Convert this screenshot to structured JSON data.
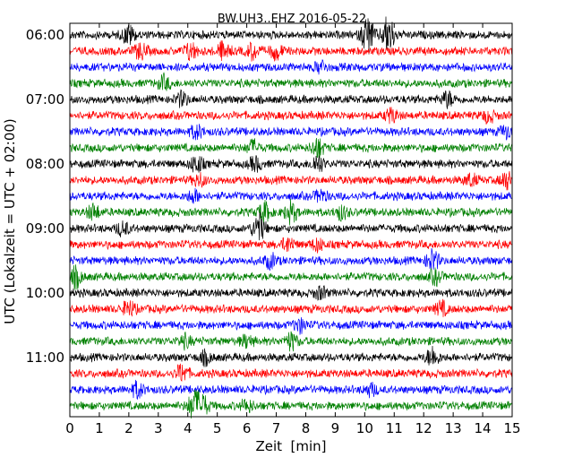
{
  "chart_data": {
    "type": "line",
    "title": "BW.UH3..EHZ 2016-05-22",
    "xlabel": "Zeit  [min]",
    "ylabel": "UTC (Lokalzeit = UTC + 02:00)",
    "xlim": [
      0,
      15
    ],
    "x_ticks": [
      "0",
      "1",
      "2",
      "3",
      "4",
      "5",
      "6",
      "7",
      "8",
      "9",
      "10",
      "11",
      "12",
      "13",
      "14",
      "15"
    ],
    "y_ticks": [
      {
        "label": "06:00",
        "row": 0
      },
      {
        "label": "07:00",
        "row": 4
      },
      {
        "label": "08:00",
        "row": 8
      },
      {
        "label": "09:00",
        "row": 12
      },
      {
        "label": "10:00",
        "row": 16
      },
      {
        "label": "11:00",
        "row": 20
      }
    ],
    "row_interval_minutes": 15,
    "start_time": "06:00",
    "color_cycle": [
      "#000000",
      "#ff0000",
      "#0000ff",
      "#008000"
    ],
    "series": [
      {
        "start": "06:00",
        "color": "#000000",
        "events": [
          {
            "minute": 2.0,
            "amp": 0.5
          },
          {
            "minute": 10.1,
            "amp": 1.0
          },
          {
            "minute": 10.8,
            "amp": 1.0
          }
        ]
      },
      {
        "start": "06:15",
        "color": "#ff0000",
        "events": [
          {
            "minute": 2.4,
            "amp": 0.4
          },
          {
            "minute": 4.1,
            "amp": 0.45
          },
          {
            "minute": 5.2,
            "amp": 0.45
          },
          {
            "minute": 6.2,
            "amp": 0.4
          },
          {
            "minute": 7.0,
            "amp": 0.4
          }
        ]
      },
      {
        "start": "06:30",
        "color": "#0000ff",
        "events": [
          {
            "minute": 8.5,
            "amp": 0.3
          }
        ]
      },
      {
        "start": "06:45",
        "color": "#008000",
        "events": [
          {
            "minute": 3.2,
            "amp": 0.35
          }
        ]
      },
      {
        "start": "07:00",
        "color": "#000000",
        "events": [
          {
            "minute": 3.8,
            "amp": 0.35
          },
          {
            "minute": 12.8,
            "amp": 0.4
          }
        ]
      },
      {
        "start": "07:15",
        "color": "#ff0000",
        "events": [
          {
            "minute": 10.9,
            "amp": 0.35
          },
          {
            "minute": 14.2,
            "amp": 0.3
          }
        ]
      },
      {
        "start": "07:30",
        "color": "#0000ff",
        "events": [
          {
            "minute": 4.3,
            "amp": 0.35
          },
          {
            "minute": 14.8,
            "amp": 0.3
          }
        ]
      },
      {
        "start": "07:45",
        "color": "#008000",
        "events": [
          {
            "minute": 6.2,
            "amp": 0.35
          },
          {
            "minute": 8.4,
            "amp": 0.5
          }
        ]
      },
      {
        "start": "08:00",
        "color": "#000000",
        "events": [
          {
            "minute": 4.3,
            "amp": 0.45
          },
          {
            "minute": 8.4,
            "amp": 0.45
          },
          {
            "minute": 6.3,
            "amp": 0.35
          }
        ]
      },
      {
        "start": "08:15",
        "color": "#ff0000",
        "events": [
          {
            "minute": 4.4,
            "amp": 0.3
          },
          {
            "minute": 13.6,
            "amp": 0.3
          },
          {
            "minute": 14.8,
            "amp": 0.45
          }
        ]
      },
      {
        "start": "08:30",
        "color": "#0000ff",
        "events": [
          {
            "minute": 4.2,
            "amp": 0.3
          },
          {
            "minute": 8.5,
            "amp": 0.3
          }
        ]
      },
      {
        "start": "08:45",
        "color": "#008000",
        "events": [
          {
            "minute": 0.8,
            "amp": 0.4
          },
          {
            "minute": 6.6,
            "amp": 0.5
          },
          {
            "minute": 7.5,
            "amp": 0.55
          },
          {
            "minute": 9.2,
            "amp": 0.35
          }
        ]
      },
      {
        "start": "09:00",
        "color": "#000000",
        "events": [
          {
            "minute": 1.8,
            "amp": 0.35
          },
          {
            "minute": 6.4,
            "amp": 0.75
          }
        ]
      },
      {
        "start": "09:15",
        "color": "#ff0000",
        "events": [
          {
            "minute": 7.4,
            "amp": 0.35
          },
          {
            "minute": 8.4,
            "amp": 0.3
          }
        ]
      },
      {
        "start": "09:30",
        "color": "#0000ff",
        "events": [
          {
            "minute": 6.8,
            "amp": 0.35
          },
          {
            "minute": 12.3,
            "amp": 0.55
          }
        ]
      },
      {
        "start": "09:45",
        "color": "#008000",
        "events": [
          {
            "minute": 0.2,
            "amp": 0.5
          },
          {
            "minute": 12.4,
            "amp": 0.35
          }
        ]
      },
      {
        "start": "10:00",
        "color": "#000000",
        "events": [
          {
            "minute": 8.5,
            "amp": 0.3
          }
        ]
      },
      {
        "start": "10:15",
        "color": "#ff0000",
        "events": [
          {
            "minute": 2.0,
            "amp": 0.4
          },
          {
            "minute": 12.6,
            "amp": 0.35
          }
        ]
      },
      {
        "start": "10:30",
        "color": "#0000ff",
        "events": [
          {
            "minute": 7.8,
            "amp": 0.35
          }
        ]
      },
      {
        "start": "10:45",
        "color": "#008000",
        "events": [
          {
            "minute": 3.9,
            "amp": 0.3
          },
          {
            "minute": 6.0,
            "amp": 0.3
          },
          {
            "minute": 7.5,
            "amp": 0.45
          }
        ]
      },
      {
        "start": "11:00",
        "color": "#000000",
        "events": [
          {
            "minute": 4.6,
            "amp": 0.3
          },
          {
            "minute": 12.3,
            "amp": 0.5
          }
        ]
      },
      {
        "start": "11:15",
        "color": "#ff0000",
        "events": [
          {
            "minute": 3.8,
            "amp": 0.45
          }
        ]
      },
      {
        "start": "11:30",
        "color": "#0000ff",
        "events": [
          {
            "minute": 2.3,
            "amp": 0.4
          },
          {
            "minute": 10.2,
            "amp": 0.3
          }
        ]
      },
      {
        "start": "11:45",
        "color": "#008000",
        "events": [
          {
            "minute": 4.2,
            "amp": 0.7
          },
          {
            "minute": 4.5,
            "amp": 0.55
          },
          {
            "minute": 6.0,
            "amp": 0.3
          }
        ]
      }
    ]
  }
}
